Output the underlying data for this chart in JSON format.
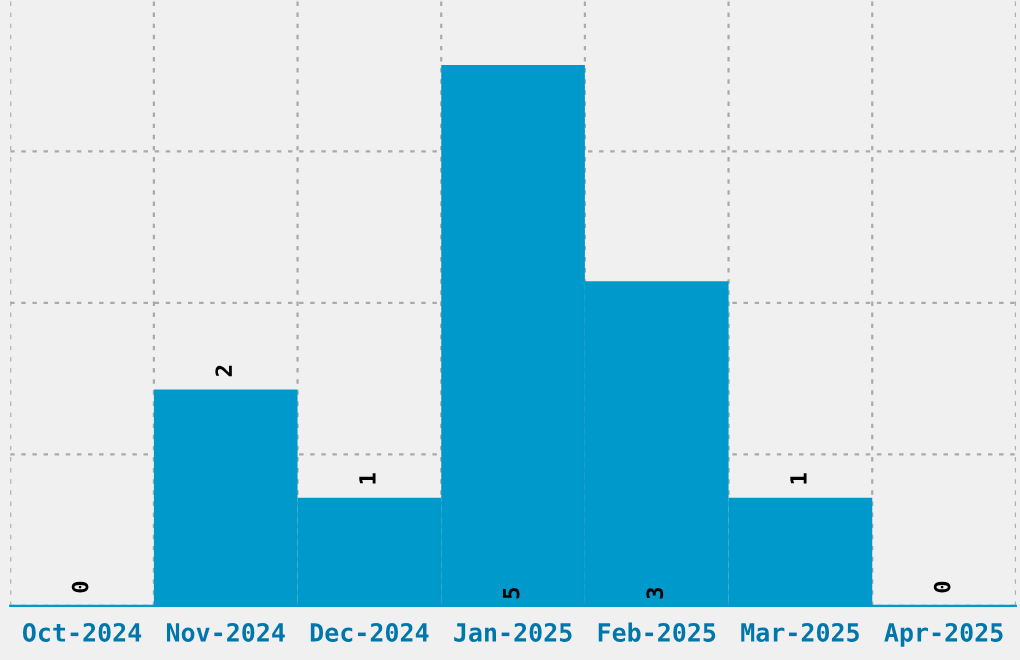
{
  "chart_data": {
    "type": "bar",
    "categories": [
      "Oct-2024",
      "Nov-2024",
      "Dec-2024",
      "Jan-2025",
      "Feb-2025",
      "Mar-2025",
      "Apr-2025"
    ],
    "values": [
      0,
      2,
      1,
      5,
      3,
      1,
      0
    ],
    "color": "#0099cc",
    "ylim": [
      0,
      5.6
    ],
    "yticks": [
      {
        "value": 0,
        "label": null
      },
      {
        "value": 1.4,
        "label": null
      },
      {
        "value": 2.8,
        "label": null
      },
      {
        "value": 4.2,
        "label": null
      }
    ],
    "tick_labels": "x",
    "grid": true,
    "data_labels": true
  }
}
